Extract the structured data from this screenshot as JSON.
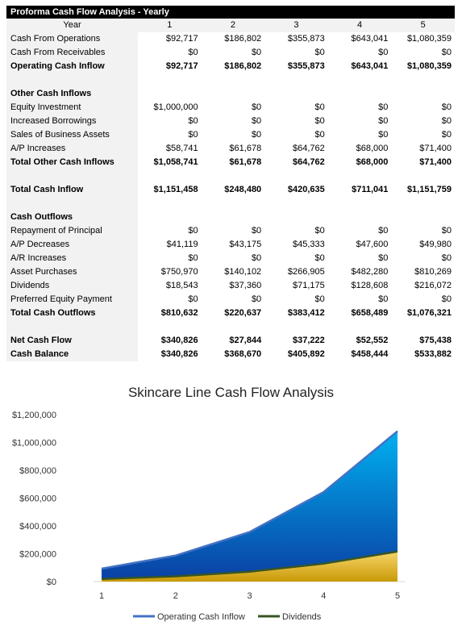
{
  "table": {
    "title": "Proforma Cash Flow Analysis - Yearly",
    "header": {
      "label": "Year",
      "values": [
        "1",
        "2",
        "3",
        "4",
        "5"
      ]
    },
    "rows": [
      {
        "label": "Cash From Operations",
        "values": [
          "$92,717",
          "$186,802",
          "$355,873",
          "$643,041",
          "$1,080,359"
        ],
        "bold": false
      },
      {
        "label": "Cash From Receivables",
        "values": [
          "$0",
          "$0",
          "$0",
          "$0",
          "$0"
        ],
        "bold": false
      },
      {
        "label": "Operating Cash Inflow",
        "values": [
          "$92,717",
          "$186,802",
          "$355,873",
          "$643,041",
          "$1,080,359"
        ],
        "bold": true
      },
      {
        "label": "",
        "values": [
          "",
          "",
          "",
          "",
          ""
        ],
        "bold": false
      },
      {
        "label": "Other Cash Inflows",
        "values": [
          "",
          "",
          "",
          "",
          ""
        ],
        "bold": true
      },
      {
        "label": "Equity Investment",
        "values": [
          "$1,000,000",
          "$0",
          "$0",
          "$0",
          "$0"
        ],
        "bold": false
      },
      {
        "label": "Increased Borrowings",
        "values": [
          "$0",
          "$0",
          "$0",
          "$0",
          "$0"
        ],
        "bold": false
      },
      {
        "label": "Sales of Business Assets",
        "values": [
          "$0",
          "$0",
          "$0",
          "$0",
          "$0"
        ],
        "bold": false
      },
      {
        "label": "A/P Increases",
        "values": [
          "$58,741",
          "$61,678",
          "$64,762",
          "$68,000",
          "$71,400"
        ],
        "bold": false
      },
      {
        "label": "Total Other Cash Inflows",
        "values": [
          "$1,058,741",
          "$61,678",
          "$64,762",
          "$68,000",
          "$71,400"
        ],
        "bold": true
      },
      {
        "label": "",
        "values": [
          "",
          "",
          "",
          "",
          ""
        ],
        "bold": false
      },
      {
        "label": "Total Cash Inflow",
        "values": [
          "$1,151,458",
          "$248,480",
          "$420,635",
          "$711,041",
          "$1,151,759"
        ],
        "bold": true
      },
      {
        "label": "",
        "values": [
          "",
          "",
          "",
          "",
          ""
        ],
        "bold": false
      },
      {
        "label": "Cash Outflows",
        "values": [
          "",
          "",
          "",
          "",
          ""
        ],
        "bold": true
      },
      {
        "label": "Repayment of Principal",
        "values": [
          "$0",
          "$0",
          "$0",
          "$0",
          "$0"
        ],
        "bold": false
      },
      {
        "label": "A/P Decreases",
        "values": [
          "$41,119",
          "$43,175",
          "$45,333",
          "$47,600",
          "$49,980"
        ],
        "bold": false
      },
      {
        "label": "A/R Increases",
        "values": [
          "$0",
          "$0",
          "$0",
          "$0",
          "$0"
        ],
        "bold": false
      },
      {
        "label": "Asset Purchases",
        "values": [
          "$750,970",
          "$140,102",
          "$266,905",
          "$482,280",
          "$810,269"
        ],
        "bold": false
      },
      {
        "label": "Dividends",
        "values": [
          "$18,543",
          "$37,360",
          "$71,175",
          "$128,608",
          "$216,072"
        ],
        "bold": false
      },
      {
        "label": "Preferred Equity Payment",
        "values": [
          "$0",
          "$0",
          "$0",
          "$0",
          "$0"
        ],
        "bold": false
      },
      {
        "label": "Total Cash Outflows",
        "values": [
          "$810,632",
          "$220,637",
          "$383,412",
          "$658,489",
          "$1,076,321"
        ],
        "bold": true
      },
      {
        "label": "",
        "values": [
          "",
          "",
          "",
          "",
          ""
        ],
        "bold": false
      },
      {
        "label": "Net Cash Flow",
        "values": [
          "$340,826",
          "$27,844",
          "$37,222",
          "$52,552",
          "$75,438"
        ],
        "bold": true
      },
      {
        "label": "Cash Balance",
        "values": [
          "$340,826",
          "$368,670",
          "$405,892",
          "$458,444",
          "$533,882"
        ],
        "bold": true
      }
    ]
  },
  "chart_data": {
    "type": "area",
    "title": "Skincare Line Cash Flow Analysis",
    "categories": [
      "1",
      "2",
      "3",
      "4",
      "5"
    ],
    "series": [
      {
        "name": "Operating Cash Inflow",
        "values": [
          92717,
          186802,
          355873,
          643041,
          1080359
        ],
        "color": "#4472c4"
      },
      {
        "name": "Dividends",
        "values": [
          18543,
          37360,
          71175,
          128608,
          216072
        ],
        "color": "#375623"
      }
    ],
    "ylim": [
      0,
      1200000
    ],
    "yticks": [
      0,
      200000,
      400000,
      600000,
      800000,
      1000000,
      1200000
    ],
    "ytick_labels": [
      "$0",
      "$200,000",
      "$400,000",
      "$600,000",
      "$800,000",
      "$1,000,000",
      "$1,200,000"
    ],
    "grid": false,
    "legend_position": "bottom"
  }
}
